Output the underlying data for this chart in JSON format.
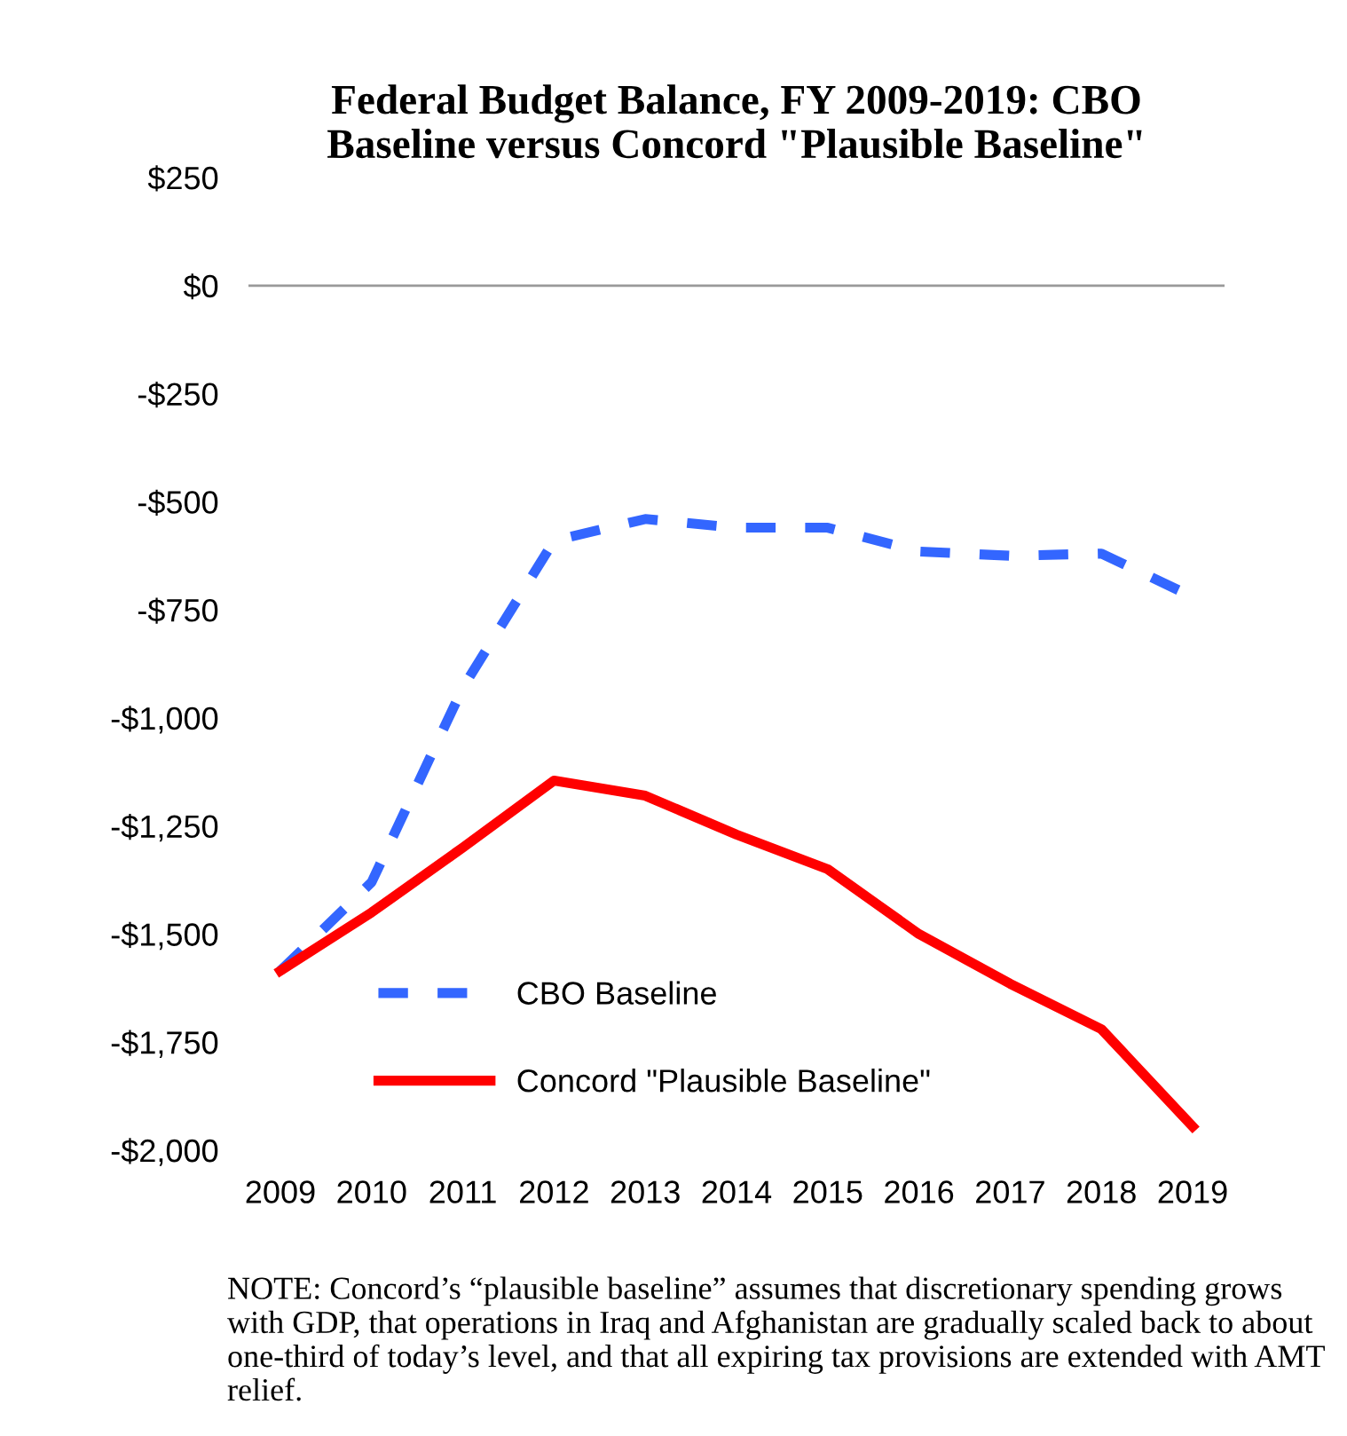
{
  "chart_data": {
    "type": "line",
    "title": "Federal Budget Balance, FY 2009-2019: CBO\nBaseline versus Concord \"Plausible Baseline\"",
    "categories": [
      "2009",
      "2010",
      "2011",
      "2012",
      "2013",
      "2014",
      "2015",
      "2016",
      "2017",
      "2018",
      "2019"
    ],
    "series": [
      {
        "name": "CBO Baseline",
        "color": "#3366ff",
        "line_style": "dashed",
        "values": [
          -1585,
          -1380,
          -930,
          -590,
          -540,
          -560,
          -560,
          -615,
          -625,
          -620,
          -720
        ]
      },
      {
        "name": "Concord \"Plausible Baseline\"",
        "color": "#ff0000",
        "line_style": "solid",
        "values": [
          -1585,
          -1450,
          -1300,
          -1145,
          -1180,
          -1270,
          -1350,
          -1500,
          -1615,
          -1720,
          -1945
        ]
      }
    ],
    "ylim": [
      -2000,
      250
    ],
    "yticks": [
      {
        "value": 250,
        "label": "$250"
      },
      {
        "value": 0,
        "label": "$0"
      },
      {
        "value": -250,
        "label": "-$250"
      },
      {
        "value": -500,
        "label": "-$500"
      },
      {
        "value": -750,
        "label": "-$750"
      },
      {
        "value": -1000,
        "label": "-$1,000"
      },
      {
        "value": -1250,
        "label": "-$1,250"
      },
      {
        "value": -1500,
        "label": "-$1,500"
      },
      {
        "value": -1750,
        "label": "-$1,750"
      },
      {
        "value": -2000,
        "label": "-$2,000"
      }
    ],
    "ref_lines": [
      {
        "axis": "y",
        "value": 0,
        "color": "#999999"
      }
    ],
    "legend": "bottom left",
    "grid": false,
    "annotations": [
      "NOTE: Concord’s “plausible baseline” assumes that discretionary spending grows with GDP, that operations in Iraq and Afghanistan are gradually scaled back to about one-third of today’s level, and that all expiring tax provisions are extended with AMT relief."
    ]
  }
}
